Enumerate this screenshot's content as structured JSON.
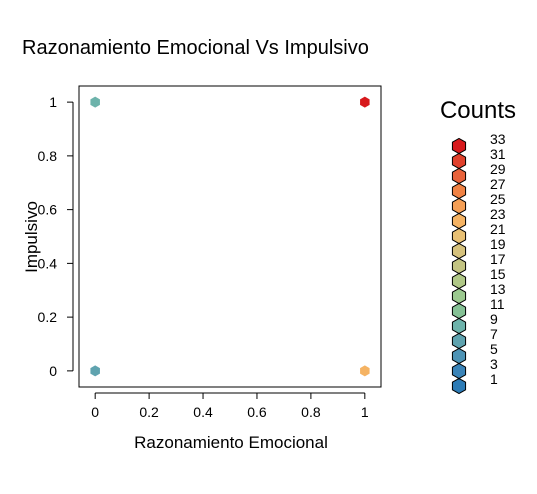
{
  "chart_data": {
    "type": "scatter",
    "title": "Razonamiento Emocional Vs Impulsivo",
    "xlabel": "Razonamiento Emocional",
    "ylabel": "Impulsivo",
    "xlim": [
      -0.06,
      1.06
    ],
    "ylim": [
      -0.06,
      1.06
    ],
    "x_ticks": [
      "0",
      "0.2",
      "0.4",
      "0.6",
      "0.8",
      "1"
    ],
    "y_ticks": [
      "0",
      "0.2",
      "0.4",
      "0.6",
      "0.8",
      "1"
    ],
    "points": [
      {
        "x": 0,
        "y": 1,
        "count": 9,
        "color": "#6db3ab"
      },
      {
        "x": 1,
        "y": 1,
        "count": 33,
        "color": "#d7191c"
      },
      {
        "x": 0,
        "y": 0,
        "count": 7,
        "color": "#5fa3af"
      },
      {
        "x": 1,
        "y": 0,
        "count": 22,
        "color": "#f5b363"
      }
    ],
    "grid": false,
    "legend": {
      "title": "Counts",
      "position": "right",
      "items": [
        {
          "label": "33",
          "color": "#d7191c"
        },
        {
          "label": "31",
          "color": "#e0412c"
        },
        {
          "label": "29",
          "color": "#e8623a"
        },
        {
          "label": "27",
          "color": "#f08244"
        },
        {
          "label": "25",
          "color": "#f59f55"
        },
        {
          "label": "23",
          "color": "#f5b363"
        },
        {
          "label": "21",
          "color": "#e8c074"
        },
        {
          "label": "19",
          "color": "#d6c27d"
        },
        {
          "label": "17",
          "color": "#c3c482"
        },
        {
          "label": "15",
          "color": "#b0c887"
        },
        {
          "label": "13",
          "color": "#9bc98f"
        },
        {
          "label": "11",
          "color": "#85c195"
        },
        {
          "label": "9",
          "color": "#6db3ab"
        },
        {
          "label": "7",
          "color": "#5fa3af"
        },
        {
          "label": "5",
          "color": "#4d93b5"
        },
        {
          "label": "3",
          "color": "#3b84b8"
        },
        {
          "label": "1",
          "color": "#2c7bb6"
        }
      ]
    }
  }
}
